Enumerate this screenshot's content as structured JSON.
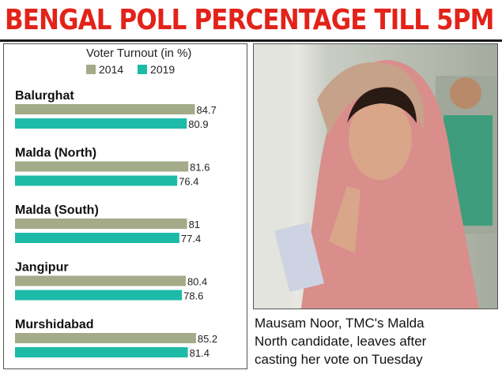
{
  "headline": "BENGAL POLL PERCENTAGE TILL 5PM",
  "chart_data": {
    "type": "bar",
    "orientation": "horizontal",
    "title": "Voter Turnout (in %)",
    "categories": [
      "Balurghat",
      "Malda (North)",
      "Malda (South)",
      "Jangipur",
      "Murshidabad"
    ],
    "series": [
      {
        "name": "2014",
        "color": "#a3ab88",
        "values": [
          84.7,
          81.6,
          81,
          80.4,
          85.2
        ],
        "labels": [
          "84.7",
          "81.6",
          "81",
          "80.4",
          "85.2"
        ]
      },
      {
        "name": "2019",
        "color": "#1dbaa8",
        "values": [
          80.9,
          76.4,
          77.4,
          78.6,
          81.4
        ],
        "labels": [
          "80.9",
          "76.4",
          "77.4",
          "78.6",
          "81.4"
        ]
      }
    ],
    "xlim": [
      0,
      86
    ],
    "grid": false,
    "legend_position": "top"
  },
  "caption": {
    "lines": [
      "Mausam Noor, TMC's Malda",
      "North candidate, leaves after",
      "casting her vote on Tuesday"
    ]
  }
}
